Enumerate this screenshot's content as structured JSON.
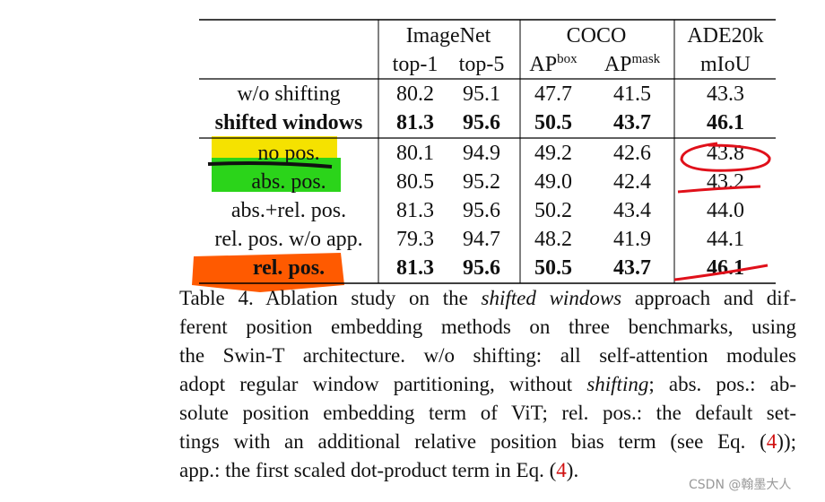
{
  "table": {
    "groups": [
      "ImageNet",
      "COCO",
      "ADE20k"
    ],
    "columns": [
      {
        "text": "top-1"
      },
      {
        "text": "top-5"
      },
      {
        "text": "AP",
        "sup": "box"
      },
      {
        "text": "AP",
        "sup": "mask"
      },
      {
        "text": "mIoU"
      }
    ],
    "rows": [
      {
        "label": "w/o shifting",
        "cells": [
          "80.2",
          "95.1",
          "47.7",
          "41.5",
          "43.3"
        ],
        "bold": false
      },
      {
        "label": "shifted windows",
        "cells": [
          "81.3",
          "95.6",
          "50.5",
          "43.7",
          "46.1"
        ],
        "bold": true
      },
      {
        "label": "no pos.",
        "cells": [
          "80.1",
          "94.9",
          "49.2",
          "42.6",
          "43.8"
        ],
        "bold": false
      },
      {
        "label": "abs. pos.",
        "cells": [
          "80.5",
          "95.2",
          "49.0",
          "42.4",
          "43.2"
        ],
        "bold": false
      },
      {
        "label": "abs.+rel. pos.",
        "cells": [
          "81.3",
          "95.6",
          "50.2",
          "43.4",
          "44.0"
        ],
        "bold": false
      },
      {
        "label": "rel. pos. w/o app.",
        "cells": [
          "79.3",
          "94.7",
          "48.2",
          "41.9",
          "44.1"
        ],
        "bold": false
      },
      {
        "label": "rel. pos.",
        "cells": [
          "81.3",
          "95.6",
          "50.5",
          "43.7",
          "46.1"
        ],
        "bold": true
      }
    ]
  },
  "caption": [
    [
      {
        "text": "Table 4. Ablation study on the "
      },
      {
        "text": "shifted windows",
        "style": "italic"
      },
      {
        "text": " approach and dif-"
      }
    ],
    [
      {
        "text": "ferent position embedding methods on three benchmarks, using"
      }
    ],
    [
      {
        "text": "the Swin-T architecture.  w/o shifting: all self-attention modules"
      }
    ],
    [
      {
        "text": "adopt regular window partitioning, without "
      },
      {
        "text": "shifting",
        "style": "italic"
      },
      {
        "text": "; abs. pos.: ab-"
      }
    ],
    [
      {
        "text": "solute position embedding term of ViT; rel. pos.: the default set-"
      }
    ],
    [
      {
        "text": "tings with an additional relative position bias term (see Eq. ("
      },
      {
        "text": "4",
        "style": "link"
      },
      {
        "text": "));"
      }
    ],
    [
      {
        "text": "app.: the first scaled dot-product term in Eq. ("
      },
      {
        "text": "4",
        "style": "link"
      },
      {
        "text": ")."
      }
    ]
  ],
  "watermark": "CSDN @翰墨大人"
}
